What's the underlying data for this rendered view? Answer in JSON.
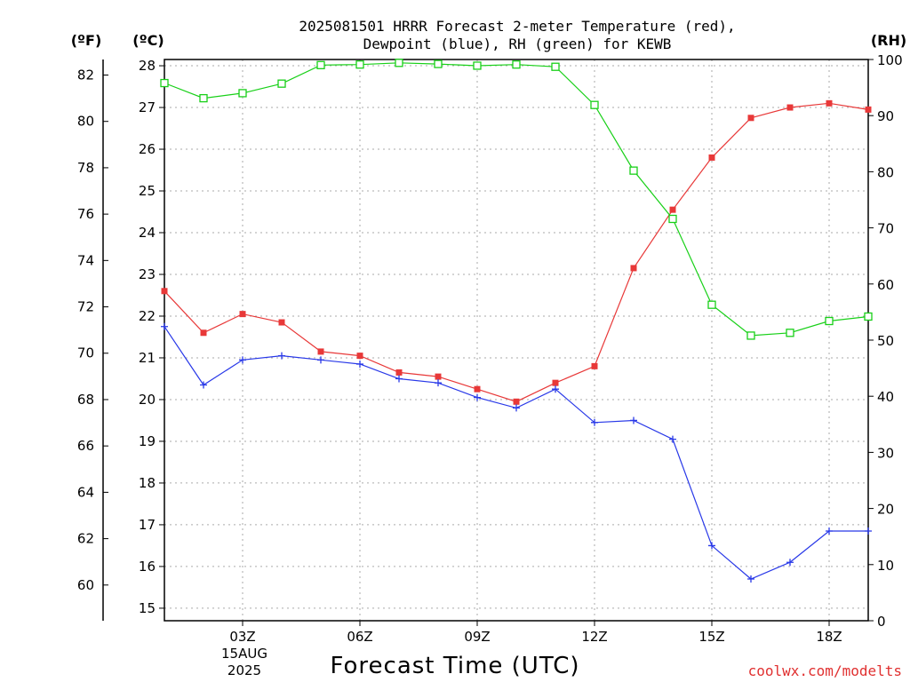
{
  "title_line1": "2025081501 HRRR Forecast 2-meter Temperature (red),",
  "title_line2": "Dewpoint (blue), RH (green) for KEWB",
  "units": {
    "fahrenheit": "(ºF)",
    "celsius": "(ºC)",
    "rh": "(RH)"
  },
  "xlabel": "Forecast Time (UTC)",
  "date_label": {
    "day": "15AUG",
    "year": "2025"
  },
  "credit": "coolwx.com/modelts",
  "colors": {
    "temperature": "#e83838",
    "dewpoint": "#2838e8",
    "rh": "#18d018"
  },
  "chart_data": {
    "type": "line",
    "x_unit": "hour UTC (2025-08-15)",
    "x": [
      1,
      2,
      3,
      4,
      5,
      6,
      7,
      8,
      9,
      10,
      11,
      12,
      13,
      14,
      15,
      16,
      17,
      18,
      19
    ],
    "x_range": [
      1,
      19
    ],
    "x_ticks": [
      3,
      6,
      9,
      12,
      15,
      18
    ],
    "x_tick_labels": [
      "03Z",
      "06Z",
      "09Z",
      "12Z",
      "15Z",
      "18Z"
    ],
    "grid": true,
    "left_axis": {
      "unit": "ºC",
      "range": [
        14.7,
        28.15
      ],
      "ticks": [
        15,
        16,
        17,
        18,
        19,
        20,
        21,
        22,
        23,
        24,
        25,
        26,
        27,
        28
      ]
    },
    "fahrenheit_axis": {
      "unit": "ºF",
      "ticks": [
        60,
        62,
        64,
        66,
        68,
        70,
        72,
        74,
        76,
        78,
        80,
        82
      ]
    },
    "right_axis": {
      "unit": "RH",
      "range": [
        0,
        100
      ],
      "ticks": [
        0,
        10,
        20,
        30,
        40,
        50,
        60,
        70,
        80,
        90,
        100
      ]
    },
    "series": [
      {
        "name": "Temperature",
        "axis": "left",
        "color": "#e83838",
        "marker": "filled-square",
        "values": [
          22.6,
          21.6,
          22.05,
          21.85,
          21.15,
          21.05,
          20.65,
          20.55,
          20.25,
          19.95,
          20.4,
          20.8,
          23.15,
          24.55,
          25.8,
          26.75,
          27.0,
          27.1,
          26.95
        ]
      },
      {
        "name": "Dewpoint",
        "axis": "left",
        "color": "#2838e8",
        "marker": "plus",
        "values": [
          21.75,
          20.35,
          20.95,
          21.05,
          20.95,
          20.85,
          20.5,
          20.4,
          20.05,
          19.8,
          20.25,
          19.45,
          19.5,
          19.05,
          16.5,
          15.7,
          16.1,
          16.85,
          16.85
        ]
      },
      {
        "name": "RH",
        "axis": "right",
        "color": "#18d018",
        "marker": "open-square",
        "values": [
          95.8,
          93.1,
          94.0,
          95.7,
          99.0,
          99.1,
          99.4,
          99.2,
          98.9,
          99.1,
          98.7,
          91.9,
          80.2,
          71.6,
          56.3,
          50.8,
          51.3,
          53.4,
          54.2
        ]
      }
    ]
  }
}
